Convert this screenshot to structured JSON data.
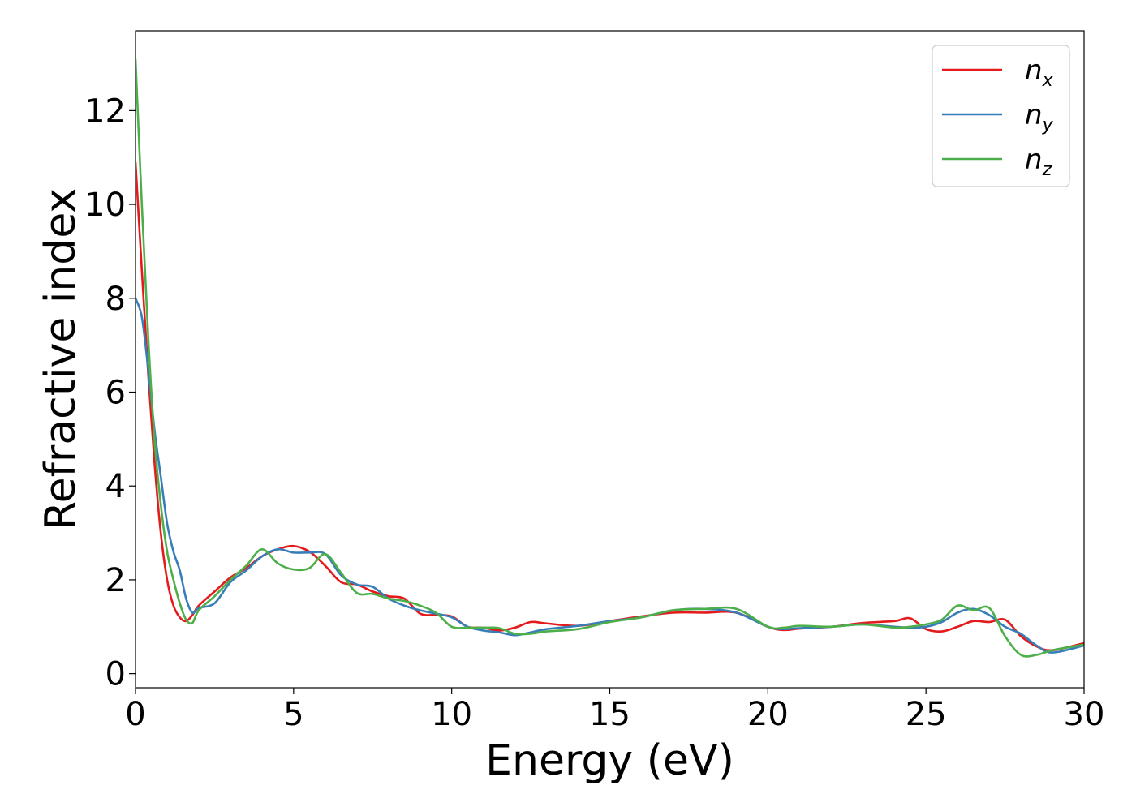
{
  "chart_data": {
    "type": "line",
    "xlabel": "Energy (eV)",
    "ylabel": "Refractive index",
    "xlim": [
      0,
      30
    ],
    "ylim": [
      -0.3,
      13.7
    ],
    "xticks": [
      0,
      5,
      10,
      15,
      20,
      25,
      30
    ],
    "yticks": [
      0,
      2,
      4,
      6,
      8,
      10,
      12
    ],
    "grid": false,
    "legend_position": "top-right",
    "series": [
      {
        "name": "n",
        "subscript": "x",
        "color": "#e41a1c",
        "x": [
          0,
          0.2,
          0.4,
          0.6,
          0.8,
          1.0,
          1.2,
          1.4,
          1.6,
          1.8,
          2.0,
          2.5,
          3.0,
          3.5,
          4.0,
          4.5,
          5.0,
          5.5,
          6.0,
          6.5,
          7.0,
          7.5,
          8.0,
          8.5,
          9.0,
          9.5,
          10.0,
          10.5,
          11.0,
          11.5,
          12.0,
          12.5,
          13.0,
          14.0,
          15.0,
          16.0,
          17.0,
          18.0,
          19.0,
          20.0,
          20.5,
          21.0,
          22.0,
          23.0,
          24.0,
          24.5,
          25.0,
          25.5,
          26.0,
          26.5,
          27.0,
          27.5,
          28.0,
          28.5,
          29.0,
          30.0
        ],
        "y": [
          10.9,
          8.6,
          6.4,
          4.5,
          3.0,
          2.0,
          1.45,
          1.2,
          1.12,
          1.25,
          1.45,
          1.75,
          2.05,
          2.25,
          2.5,
          2.65,
          2.72,
          2.6,
          2.3,
          1.95,
          1.9,
          1.75,
          1.65,
          1.6,
          1.28,
          1.25,
          1.22,
          1.0,
          0.98,
          0.92,
          0.98,
          1.1,
          1.07,
          1.02,
          1.12,
          1.22,
          1.3,
          1.3,
          1.3,
          1.0,
          0.93,
          0.96,
          1.0,
          1.08,
          1.12,
          1.18,
          0.95,
          0.9,
          1.0,
          1.12,
          1.1,
          1.15,
          0.8,
          0.58,
          0.5,
          0.65
        ]
      },
      {
        "name": "n",
        "subscript": "y",
        "color": "#377eb8",
        "x": [
          0,
          0.2,
          0.4,
          0.6,
          0.8,
          1.0,
          1.2,
          1.4,
          1.6,
          1.8,
          2.0,
          2.5,
          3.0,
          3.5,
          4.0,
          4.5,
          5.0,
          5.5,
          6.0,
          6.5,
          7.0,
          7.5,
          8.0,
          8.5,
          9.0,
          9.5,
          10.0,
          10.5,
          11.0,
          11.5,
          12.0,
          12.5,
          13.0,
          14.0,
          15.0,
          16.0,
          17.0,
          18.0,
          19.0,
          20.0,
          20.5,
          21.0,
          22.0,
          23.0,
          24.0,
          24.5,
          25.0,
          25.5,
          26.0,
          26.5,
          27.0,
          27.5,
          28.0,
          28.5,
          29.0,
          30.0
        ],
        "y": [
          8.0,
          7.6,
          6.5,
          5.2,
          4.2,
          3.2,
          2.6,
          2.2,
          1.6,
          1.3,
          1.4,
          1.5,
          1.95,
          2.2,
          2.5,
          2.65,
          2.58,
          2.58,
          2.55,
          2.1,
          1.9,
          1.85,
          1.6,
          1.45,
          1.35,
          1.28,
          1.2,
          1.0,
          0.92,
          0.88,
          0.82,
          0.88,
          0.95,
          1.02,
          1.12,
          1.2,
          1.35,
          1.38,
          1.3,
          1.0,
          0.95,
          0.97,
          1.0,
          1.05,
          1.0,
          0.98,
          1.0,
          1.1,
          1.3,
          1.38,
          1.25,
          1.0,
          0.85,
          0.6,
          0.45,
          0.6
        ]
      },
      {
        "name": "n",
        "subscript": "z",
        "color": "#4daf4a",
        "x": [
          0,
          0.2,
          0.4,
          0.6,
          0.8,
          1.0,
          1.2,
          1.4,
          1.6,
          1.8,
          2.0,
          2.5,
          3.0,
          3.5,
          4.0,
          4.5,
          5.0,
          5.5,
          6.0,
          6.5,
          7.0,
          7.5,
          8.0,
          8.5,
          9.0,
          9.5,
          10.0,
          10.5,
          11.0,
          11.5,
          12.0,
          12.5,
          13.0,
          14.0,
          15.0,
          16.0,
          17.0,
          18.0,
          19.0,
          20.0,
          20.5,
          21.0,
          22.0,
          23.0,
          24.0,
          24.5,
          25.0,
          25.5,
          26.0,
          26.5,
          27.0,
          27.5,
          28.0,
          28.5,
          29.0,
          30.0
        ],
        "y": [
          13.1,
          10.0,
          7.2,
          5.0,
          3.6,
          2.6,
          2.0,
          1.5,
          1.15,
          1.08,
          1.35,
          1.65,
          2.0,
          2.3,
          2.65,
          2.35,
          2.22,
          2.25,
          2.55,
          2.15,
          1.72,
          1.7,
          1.6,
          1.55,
          1.45,
          1.3,
          1.0,
          0.98,
          0.98,
          0.97,
          0.85,
          0.85,
          0.9,
          0.95,
          1.1,
          1.2,
          1.35,
          1.38,
          1.38,
          1.0,
          0.98,
          1.02,
          1.0,
          1.05,
          0.98,
          1.0,
          1.05,
          1.15,
          1.45,
          1.35,
          1.4,
          0.8,
          0.4,
          0.4,
          0.5,
          0.62
        ]
      }
    ]
  }
}
